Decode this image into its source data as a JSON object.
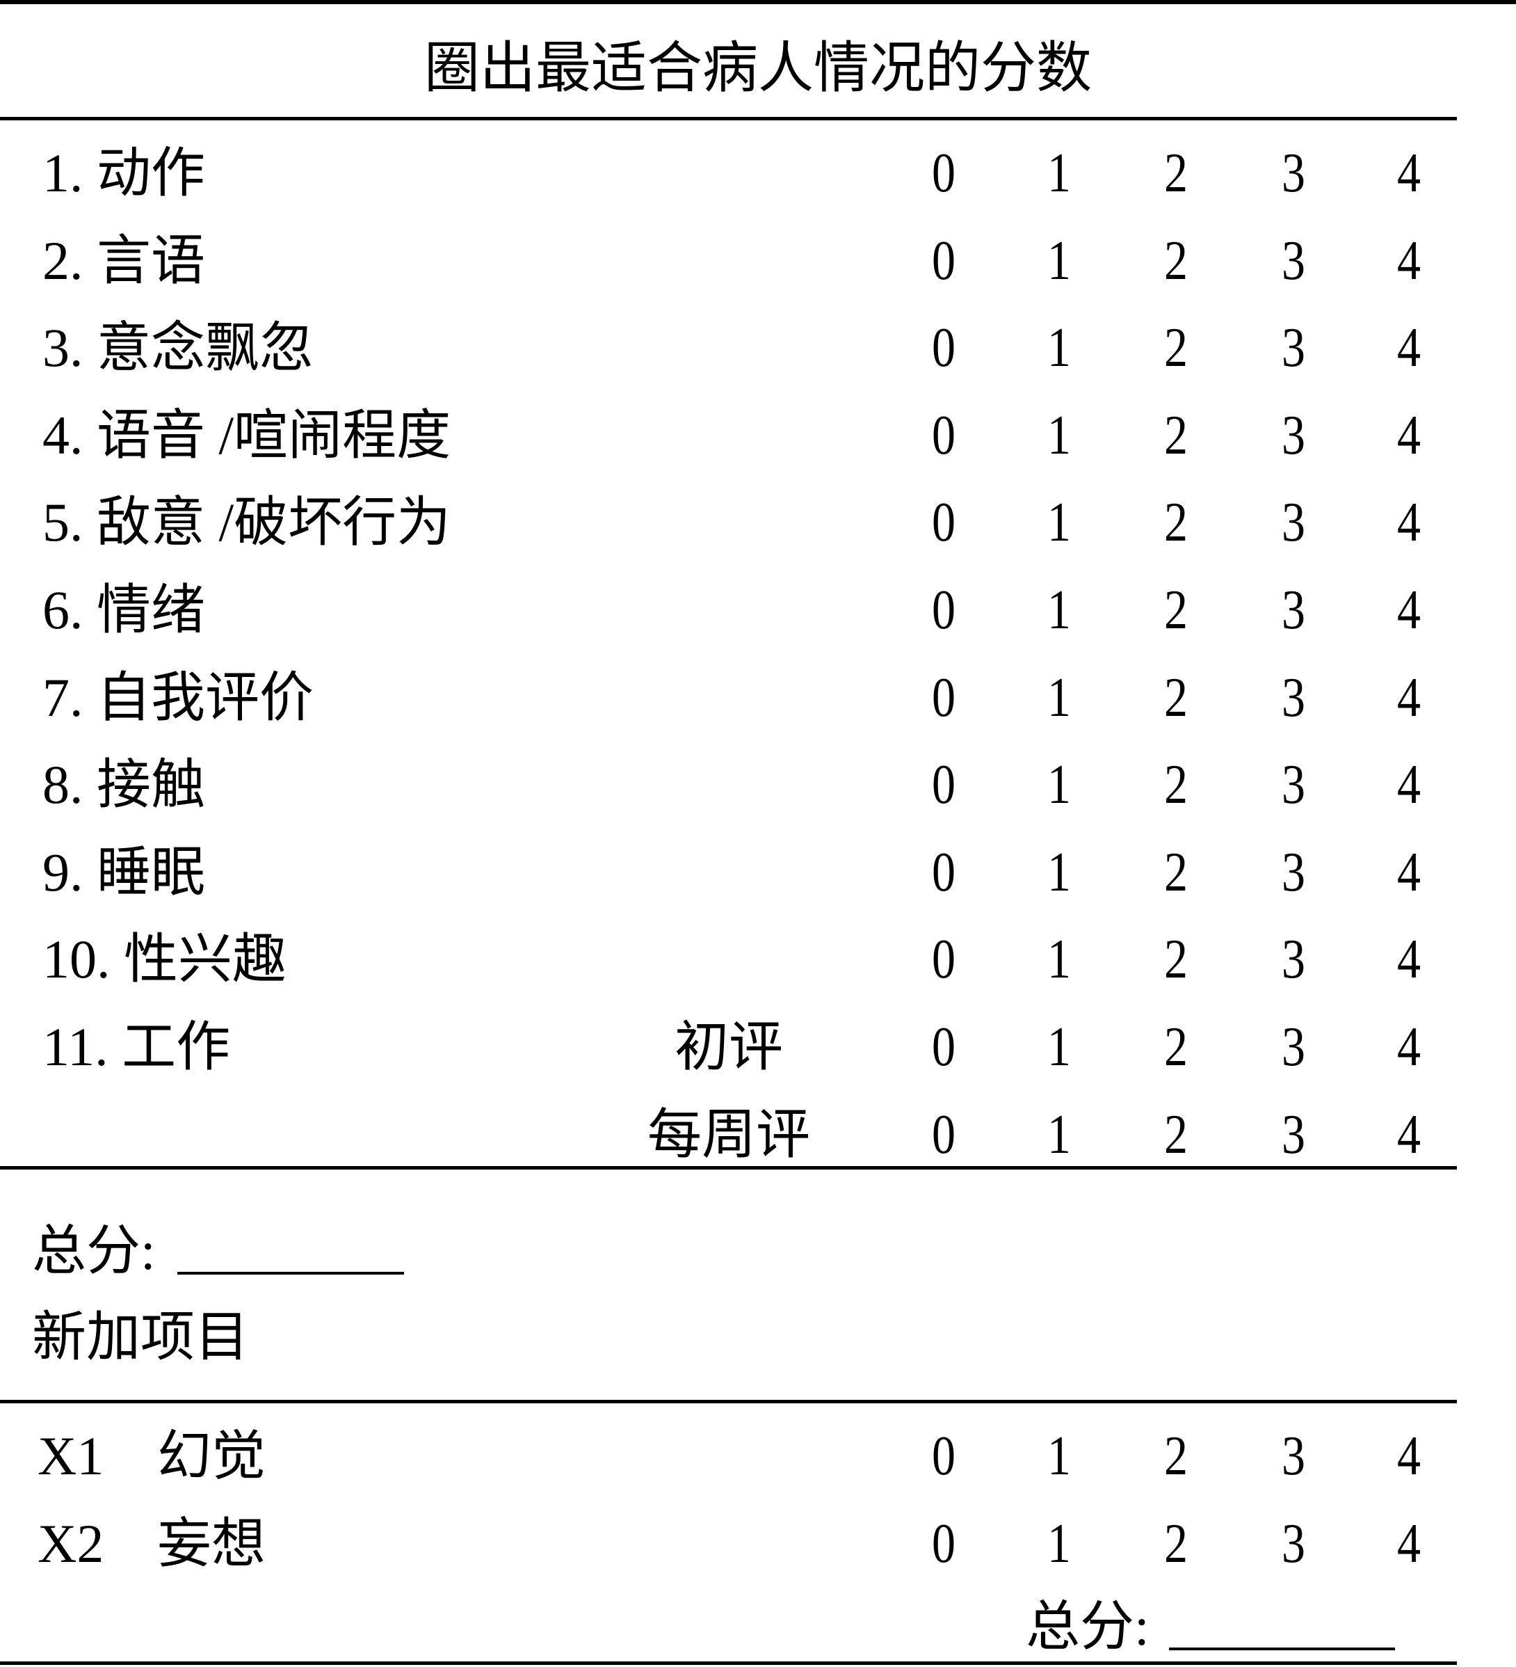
{
  "title": "圈出最适合病人情况的分数",
  "scale": [
    "0",
    "1",
    "2",
    "3",
    "4"
  ],
  "items": [
    {
      "label": "1. 动作"
    },
    {
      "label": "2. 言语"
    },
    {
      "label": "3. 意念飘忽"
    },
    {
      "label": "4. 语音 /喧闹程度"
    },
    {
      "label": "5. 敌意 /破坏行为"
    },
    {
      "label": "6. 情绪"
    },
    {
      "label": "7. 自我评价"
    },
    {
      "label": "8. 接触"
    },
    {
      "label": "9. 睡眠"
    },
    {
      "label": "10. 性兴趣"
    },
    {
      "label": "11. 工作",
      "sub": "初评"
    },
    {
      "label": "",
      "sub": "每周评"
    }
  ],
  "total_label": "总分:",
  "added_items_heading": "新加项目",
  "extra_items": [
    {
      "code": "X1",
      "label": "幻觉"
    },
    {
      "code": "X2",
      "label": "妄想"
    }
  ],
  "extra_total_label": "总分:"
}
